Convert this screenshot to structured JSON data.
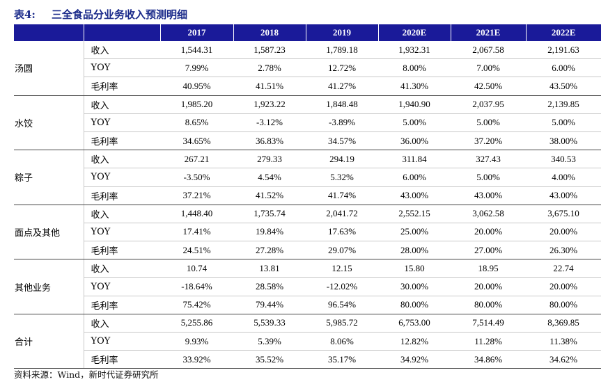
{
  "title": {
    "number": "表4:",
    "text": "三全食品分业务收入预测明细"
  },
  "header": {
    "segment": "",
    "metric": "",
    "years": [
      "2017",
      "2018",
      "2019",
      "2020E",
      "2021E",
      "2022E"
    ]
  },
  "segments": [
    {
      "name": "汤圆",
      "rows": [
        {
          "metric": "收入",
          "values": [
            "1,544.31",
            "1,587.23",
            "1,789.18",
            "1,932.31",
            "2,067.58",
            "2,191.63"
          ]
        },
        {
          "metric": "YOY",
          "values": [
            "7.99%",
            "2.78%",
            "12.72%",
            "8.00%",
            "7.00%",
            "6.00%"
          ]
        },
        {
          "metric": "毛利率",
          "values": [
            "40.95%",
            "41.51%",
            "41.27%",
            "41.30%",
            "42.50%",
            "43.50%"
          ]
        }
      ]
    },
    {
      "name": "水饺",
      "rows": [
        {
          "metric": "收入",
          "values": [
            "1,985.20",
            "1,923.22",
            "1,848.48",
            "1,940.90",
            "2,037.95",
            "2,139.85"
          ]
        },
        {
          "metric": "YOY",
          "values": [
            "8.65%",
            "-3.12%",
            "-3.89%",
            "5.00%",
            "5.00%",
            "5.00%"
          ]
        },
        {
          "metric": "毛利率",
          "values": [
            "34.65%",
            "36.83%",
            "34.57%",
            "36.00%",
            "37.20%",
            "38.00%"
          ]
        }
      ]
    },
    {
      "name": "粽子",
      "rows": [
        {
          "metric": "收入",
          "values": [
            "267.21",
            "279.33",
            "294.19",
            "311.84",
            "327.43",
            "340.53"
          ]
        },
        {
          "metric": "YOY",
          "values": [
            "-3.50%",
            "4.54%",
            "5.32%",
            "6.00%",
            "5.00%",
            "4.00%"
          ]
        },
        {
          "metric": "毛利率",
          "values": [
            "37.21%",
            "41.52%",
            "41.74%",
            "43.00%",
            "43.00%",
            "43.00%"
          ]
        }
      ]
    },
    {
      "name": "面点及其他",
      "rows": [
        {
          "metric": "收入",
          "values": [
            "1,448.40",
            "1,735.74",
            "2,041.72",
            "2,552.15",
            "3,062.58",
            "3,675.10"
          ]
        },
        {
          "metric": "YOY",
          "values": [
            "17.41%",
            "19.84%",
            "17.63%",
            "25.00%",
            "20.00%",
            "20.00%"
          ]
        },
        {
          "metric": "毛利率",
          "values": [
            "24.51%",
            "27.28%",
            "29.07%",
            "28.00%",
            "27.00%",
            "26.30%"
          ]
        }
      ]
    },
    {
      "name": "其他业务",
      "rows": [
        {
          "metric": "收入",
          "values": [
            "10.74",
            "13.81",
            "12.15",
            "15.80",
            "18.95",
            "22.74"
          ]
        },
        {
          "metric": "YOY",
          "values": [
            "-18.64%",
            "28.58%",
            "-12.02%",
            "30.00%",
            "20.00%",
            "20.00%"
          ]
        },
        {
          "metric": "毛利率",
          "values": [
            "75.42%",
            "79.44%",
            "96.54%",
            "80.00%",
            "80.00%",
            "80.00%"
          ]
        }
      ]
    },
    {
      "name": "合计",
      "rows": [
        {
          "metric": "收入",
          "values": [
            "5,255.86",
            "5,539.33",
            "5,985.72",
            "6,753.00",
            "7,514.49",
            "8,369.85"
          ]
        },
        {
          "metric": "YOY",
          "values": [
            "9.93%",
            "5.39%",
            "8.06%",
            "12.82%",
            "11.28%",
            "11.38%"
          ]
        },
        {
          "metric": "毛利率",
          "values": [
            "33.92%",
            "35.52%",
            "35.17%",
            "34.92%",
            "34.86%",
            "34.62%"
          ]
        }
      ]
    }
  ],
  "source": "资料来源：Wind，新时代证券研究所",
  "colors": {
    "header_bg": "#1a1a99",
    "title": "#1a2a8a"
  }
}
